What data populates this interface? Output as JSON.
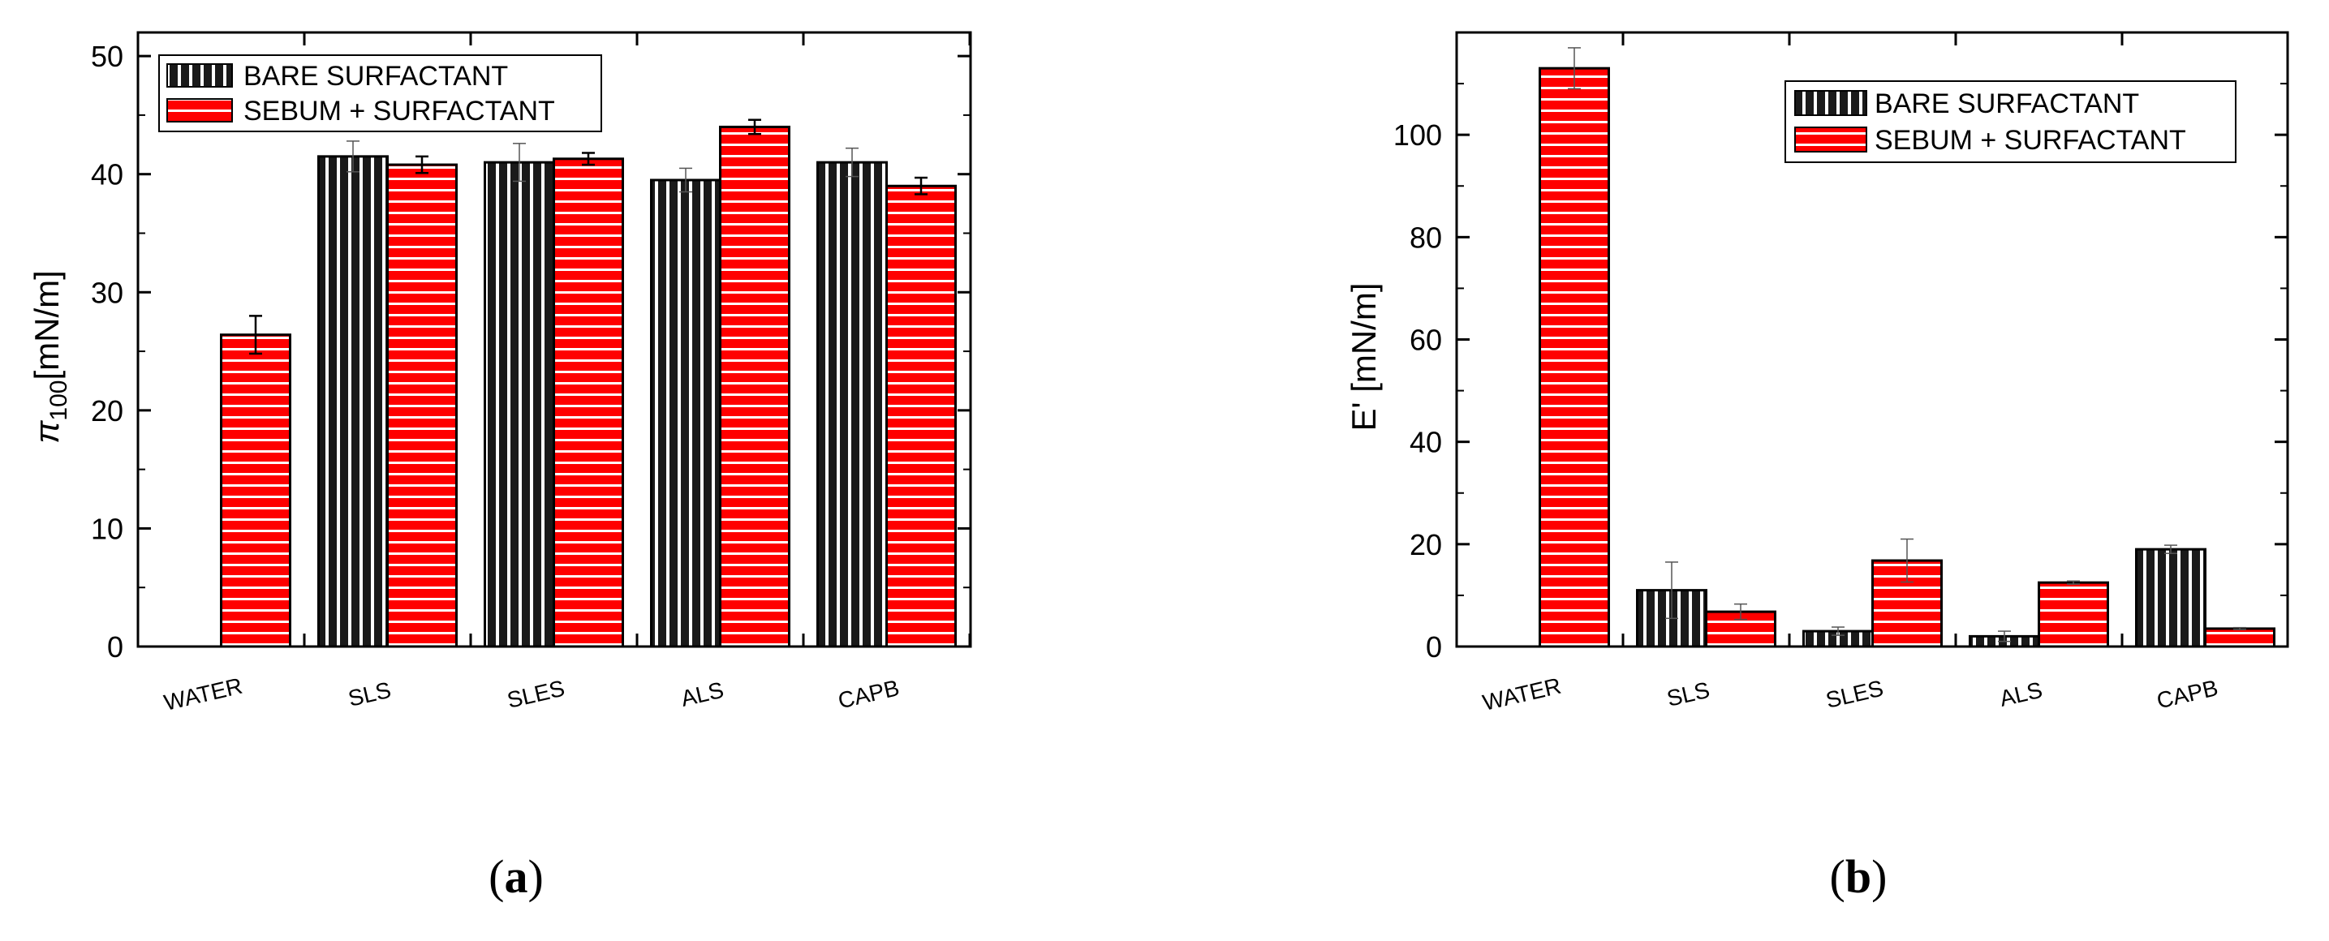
{
  "chart_data": [
    {
      "type": "bar",
      "panel": "(a)",
      "panel_letter": "a",
      "ylabel_sym": "π",
      "ylabel_sub": "100",
      "ylabel_unit": "[mN/m]",
      "ylim": [
        0,
        52
      ],
      "yticks": [
        0,
        10,
        20,
        30,
        40,
        50
      ],
      "categories": [
        "WATER",
        "SLS",
        "SLES",
        "ALS",
        "CAPB"
      ],
      "legend_position": "top-left",
      "series": [
        {
          "name": "BARE SURFACTANT",
          "values": [
            null,
            41.5,
            41.0,
            39.5,
            41.0
          ],
          "errors": [
            null,
            1.3,
            1.6,
            1.0,
            1.2
          ],
          "pattern": "vertical-stripes"
        },
        {
          "name": "SEBUM + SURFACTANT",
          "values": [
            26.4,
            40.8,
            41.3,
            44.0,
            39.0
          ],
          "errors": [
            1.6,
            0.7,
            0.5,
            0.6,
            0.7
          ],
          "pattern": "horizontal-stripes"
        }
      ]
    },
    {
      "type": "bar",
      "panel": "(b)",
      "panel_letter": "b",
      "ylabel": "E' [mN/m]",
      "ylim": [
        0,
        120
      ],
      "yticks": [
        0,
        20,
        40,
        60,
        80,
        100
      ],
      "categories": [
        "WATER",
        "SLS",
        "SLES",
        "ALS",
        "CAPB"
      ],
      "legend_position": "top-right",
      "series": [
        {
          "name": "BARE SURFACTANT",
          "values": [
            null,
            11.0,
            3.0,
            2.0,
            19.0
          ],
          "errors": [
            null,
            5.5,
            0.8,
            1.0,
            0.8
          ],
          "pattern": "vertical-stripes"
        },
        {
          "name": "SEBUM + SURFACTANT",
          "values": [
            113.0,
            6.8,
            16.8,
            12.5,
            3.5
          ],
          "errors": [
            4.0,
            1.5,
            4.2,
            0.3,
            0.2
          ],
          "pattern": "horizontal-stripes"
        }
      ]
    }
  ],
  "colors": {
    "bare": "#1a1a1a",
    "bare_stripe": "#ffffff",
    "sebum": "#ff0000",
    "sebum_stripe": "#ffffff",
    "axis": "#000000"
  }
}
